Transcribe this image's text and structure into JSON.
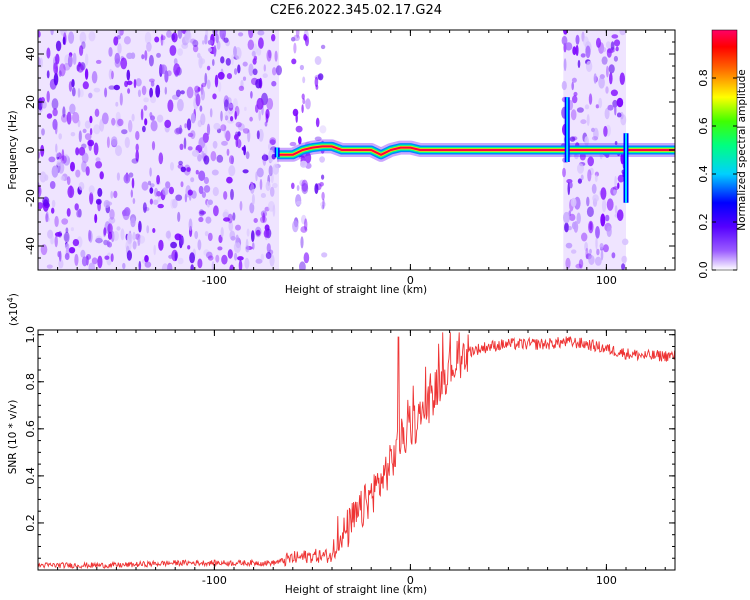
{
  "chart_data": [
    {
      "type": "heatmap",
      "title": "C2E6.2022.345.02.17.G24",
      "xlabel": "Height of straight line (km)",
      "ylabel": "Frequency (Hz)",
      "xlim": [
        -190,
        135
      ],
      "ylim": [
        -50,
        50
      ],
      "xticks": [
        -100,
        0,
        100
      ],
      "yticks": [
        -40,
        -20,
        0,
        20,
        40
      ],
      "colorbar": {
        "label": "Normalized spectral amplitude",
        "range": [
          0.0,
          1.0
        ],
        "ticks": [
          "0.0",
          "0.2",
          "0.4",
          "0.6",
          "0.8"
        ],
        "colormap": [
          "#ffffff",
          "#6a00ff",
          "#0000ff",
          "#00ffff",
          "#00ff00",
          "#ffff00",
          "#ff0000",
          "#ff0066"
        ]
      },
      "noise_regions": [
        [
          -190,
          -67
        ],
        [
          -60,
          -52
        ],
        [
          -48,
          -44
        ],
        [
          78,
          110
        ]
      ],
      "signal_trace": {
        "x": [
          -68,
          -60,
          -55,
          -50,
          -45,
          -40,
          -35,
          -30,
          -25,
          -20,
          -15,
          -10,
          -5,
          0,
          5,
          10,
          30,
          50,
          75,
          78,
          80,
          95,
          108,
          110,
          112,
          135
        ],
        "frequency_hz": [
          -2,
          -2,
          0,
          1,
          1.5,
          1.5,
          0,
          0,
          0,
          0,
          -2,
          0,
          1,
          1,
          0,
          0,
          0,
          0,
          0,
          0,
          0,
          0,
          0,
          0,
          0,
          0
        ],
        "amplitude": [
          0.8,
          0.6,
          0.5,
          0.6,
          0.9,
          0.9,
          0.95,
          0.95,
          0.9,
          0.9,
          0.7,
          0.8,
          0.6,
          0.7,
          1.0,
          1.0,
          1.0,
          1.0,
          1.0,
          0.5,
          0.6,
          0.5,
          0.4,
          0.9,
          1.0,
          1.0
        ]
      }
    },
    {
      "type": "line",
      "xlabel": "Height of straight line (km)",
      "ylabel": "SNR (10 * v/v)",
      "y_scale_label": "(x10^4)",
      "xlim": [
        -190,
        135
      ],
      "ylim": [
        0,
        1.02
      ],
      "xticks": [
        -100,
        0,
        100
      ],
      "yticks": [
        0.2,
        0.4,
        0.6,
        0.8,
        1.0
      ],
      "series": [
        {
          "color": "#ee3333",
          "x": [
            -190,
            -150,
            -120,
            -90,
            -70,
            -60,
            -50,
            -40,
            -30,
            -25,
            -20,
            -15,
            -10,
            -5,
            0,
            5,
            10,
            15,
            20,
            25,
            30,
            40,
            50,
            60,
            70,
            80,
            90,
            100,
            110,
            120,
            135
          ],
          "y": [
            0.02,
            0.02,
            0.03,
            0.03,
            0.03,
            0.05,
            0.06,
            0.06,
            0.2,
            0.25,
            0.32,
            0.38,
            0.45,
            0.55,
            0.6,
            0.65,
            0.72,
            0.8,
            0.86,
            0.9,
            0.93,
            0.95,
            0.96,
            0.96,
            0.96,
            0.97,
            0.96,
            0.94,
            0.92,
            0.91,
            0.91
          ]
        }
      ],
      "spikes": [
        {
          "x": -6,
          "y": 0.99
        }
      ]
    }
  ]
}
